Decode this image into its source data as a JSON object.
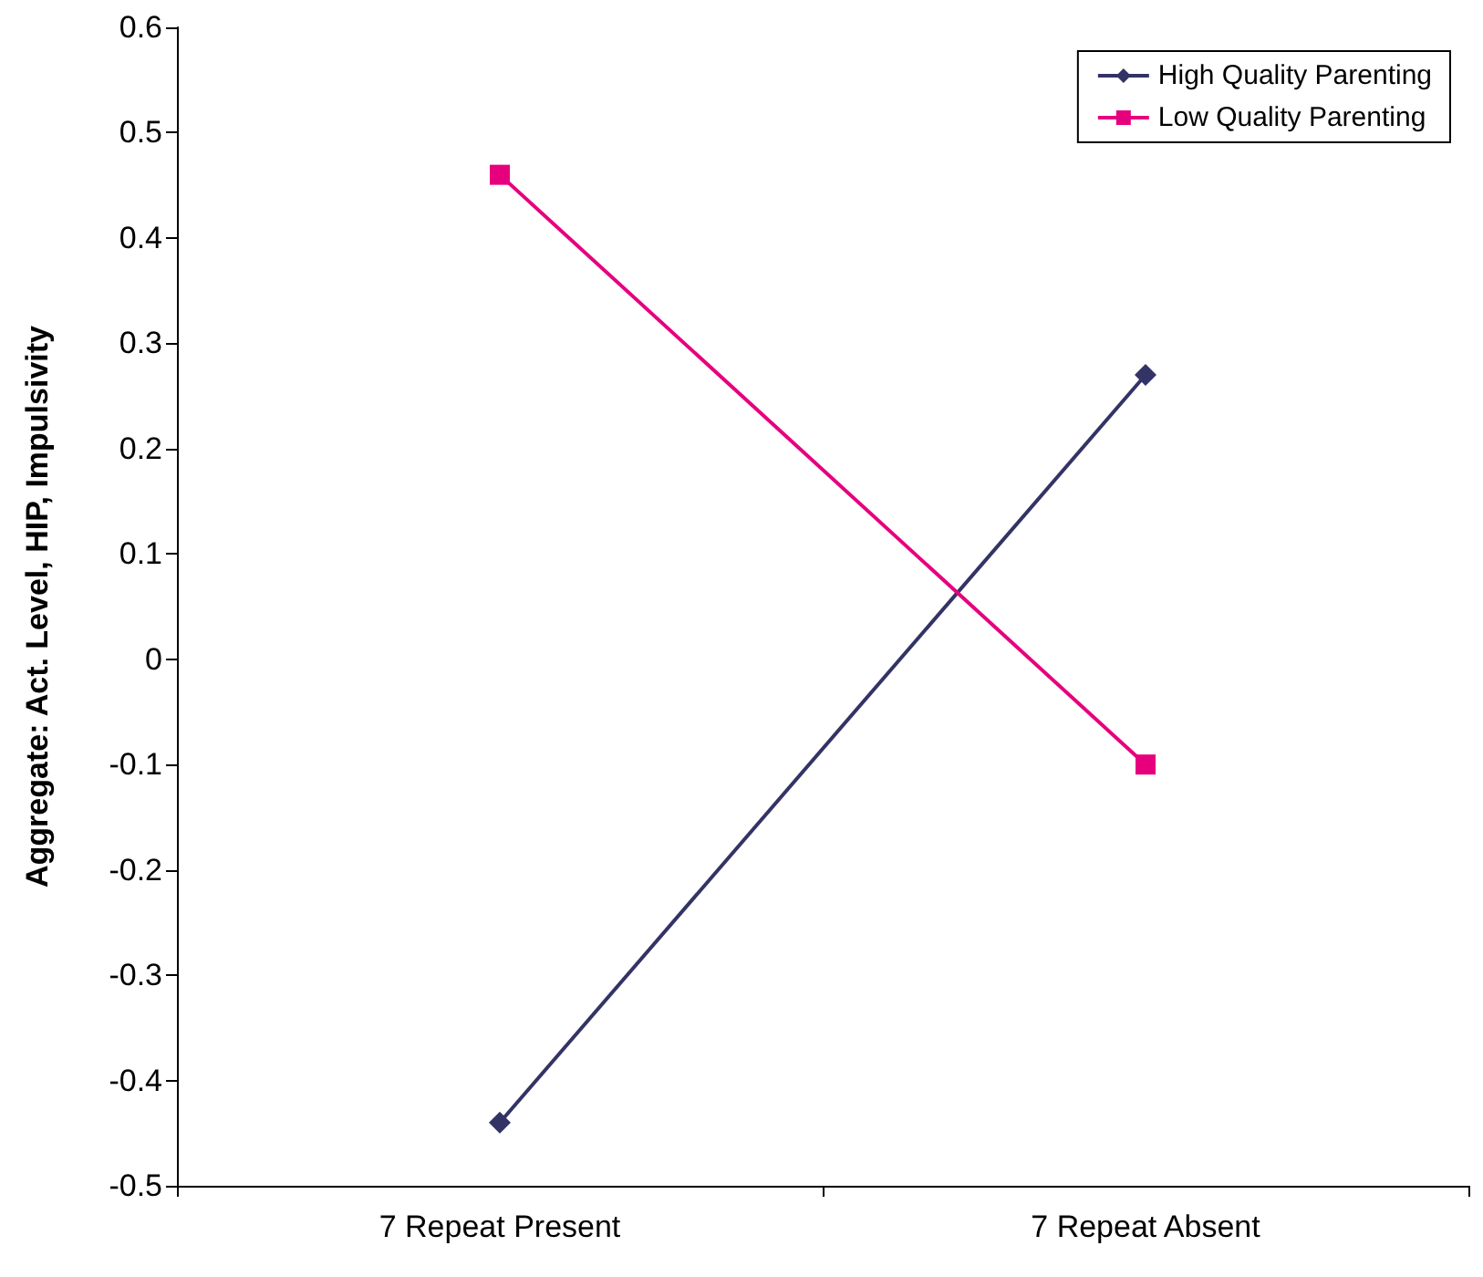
{
  "chart_data": {
    "type": "line",
    "ylabel": "Aggregate: Act. Level, HIP, Impulsivity",
    "categories": [
      "7 Repeat Present",
      "7 Repeat Absent"
    ],
    "series": [
      {
        "name": "High Quality Parenting",
        "color": "#333366",
        "marker": "diamond",
        "values": [
          -0.44,
          0.27
        ]
      },
      {
        "name": "Low Quality Parenting",
        "color": "#e6007e",
        "marker": "square",
        "values": [
          0.46,
          -0.1
        ]
      }
    ],
    "ylim": [
      -0.5,
      0.6
    ],
    "yticks": [
      -0.5,
      -0.4,
      -0.3,
      -0.2,
      -0.1,
      0,
      0.1,
      0.2,
      0.3,
      0.4,
      0.5,
      0.6
    ],
    "grid": false,
    "legend": "top right"
  }
}
